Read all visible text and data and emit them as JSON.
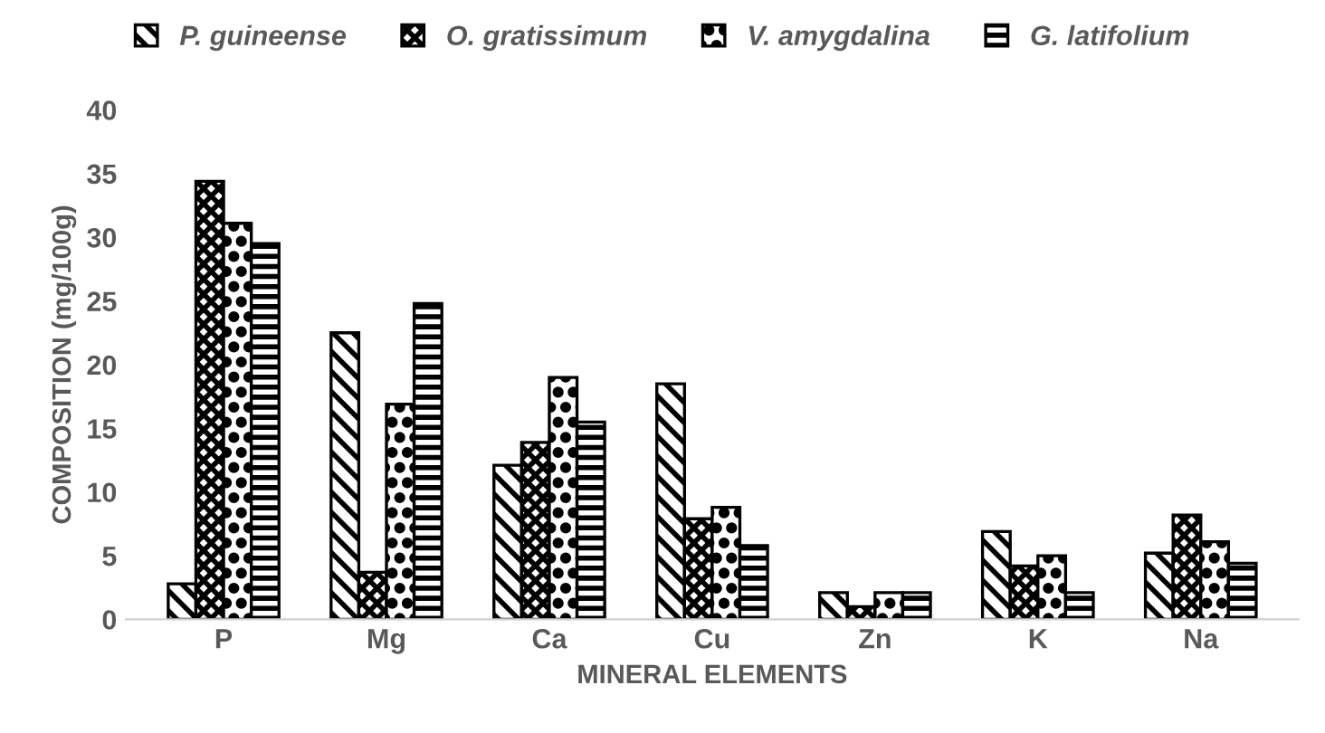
{
  "chart_data": {
    "type": "bar",
    "xlabel": "MINERAL ELEMENTS",
    "ylabel": "COMPOSITION (mg/100g)",
    "categories": [
      "P",
      "Mg",
      "Ca",
      "Cu",
      "Zn",
      "K",
      "Na"
    ],
    "series": [
      {
        "name": "P. guineense",
        "color": "#000000",
        "values": [
          2.8,
          22.5,
          12.1,
          18.5,
          2.1,
          6.9,
          5.2
        ]
      },
      {
        "name": "O. gratissimum",
        "color": "#000000",
        "values": [
          34.4,
          3.7,
          13.9,
          7.9,
          1.0,
          4.2,
          8.2
        ]
      },
      {
        "name": "V. amygdalina",
        "color": "#000000",
        "values": [
          31.1,
          16.9,
          19.0,
          8.8,
          2.1,
          5.0,
          6.1
        ]
      },
      {
        "name": "G. latifolium",
        "color": "#000000",
        "values": [
          29.5,
          24.8,
          15.5,
          5.8,
          2.1,
          2.1,
          4.4
        ]
      }
    ],
    "ylim": [
      0,
      40
    ],
    "yticks": [
      0,
      5,
      10,
      15,
      20,
      25,
      30,
      35,
      40
    ],
    "grid": false,
    "legend": "top"
  }
}
